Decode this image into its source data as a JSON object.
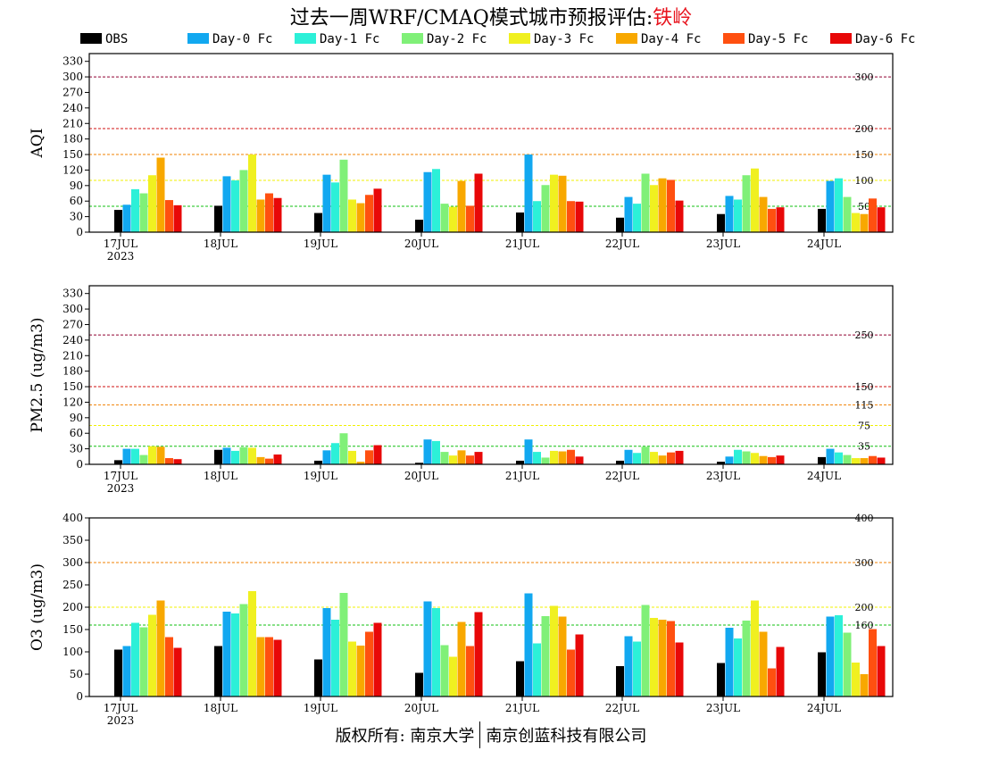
{
  "header": {
    "title": "过去一周WRF/CMAQ模式城市预报评估:",
    "city": "铁岭"
  },
  "footer": {
    "left": "版权所有: 南京大学",
    "right": "南京创蓝科技有限公司"
  },
  "colors": {
    "series": [
      "#000000",
      "#12a8f0",
      "#2cf0d8",
      "#80f078",
      "#f0f020",
      "#f8a800",
      "#ff5010",
      "#e80808"
    ],
    "lines": {
      "green": "#10c010",
      "yellow": "#f0f000",
      "orange": "#f08000",
      "red": "#d01010",
      "maroon": "#900030"
    }
  },
  "chart_data": [
    {
      "type": "bar",
      "ylabel": "AQI",
      "ylim": [
        0,
        345
      ],
      "yticks": [
        0,
        30,
        60,
        90,
        120,
        150,
        180,
        210,
        240,
        270,
        300,
        330
      ],
      "categories": [
        "17JUL",
        "18JUL",
        "19JUL",
        "20JUL",
        "21JUL",
        "22JUL",
        "23JUL",
        "24JUL"
      ],
      "year_label": "2023",
      "thresholds": [
        {
          "value": 50,
          "label": "50",
          "color": "green"
        },
        {
          "value": 100,
          "label": "100",
          "color": "yellow"
        },
        {
          "value": 150,
          "label": "150",
          "color": "orange"
        },
        {
          "value": 200,
          "label": "200",
          "color": "red"
        },
        {
          "value": 300,
          "label": "300",
          "color": "maroon"
        }
      ],
      "series": [
        {
          "name": "OBS",
          "values": [
            43,
            51,
            37,
            24,
            38,
            28,
            35,
            45
          ]
        },
        {
          "name": "Day-0 Fc",
          "values": [
            53,
            108,
            111,
            116,
            150,
            68,
            70,
            99
          ]
        },
        {
          "name": "Day-1 Fc",
          "values": [
            83,
            100,
            96,
            122,
            60,
            55,
            63,
            104
          ]
        },
        {
          "name": "Day-2 Fc",
          "values": [
            75,
            120,
            140,
            55,
            91,
            113,
            110,
            68
          ]
        },
        {
          "name": "Day-3 Fc",
          "values": [
            110,
            150,
            63,
            49,
            111,
            91,
            123,
            37
          ]
        },
        {
          "name": "Day-4 Fc",
          "values": [
            144,
            63,
            56,
            99,
            109,
            104,
            68,
            35
          ]
        },
        {
          "name": "Day-5 Fc",
          "values": [
            62,
            75,
            72,
            51,
            60,
            101,
            45,
            65
          ]
        },
        {
          "name": "Day-6 Fc",
          "values": [
            52,
            66,
            84,
            113,
            59,
            61,
            48,
            48
          ]
        }
      ]
    },
    {
      "type": "bar",
      "ylabel": "PM2.5 (ug/m3)",
      "ylim": [
        0,
        345
      ],
      "yticks": [
        0,
        30,
        60,
        90,
        120,
        150,
        180,
        210,
        240,
        270,
        300,
        330
      ],
      "categories": [
        "17JUL",
        "18JUL",
        "19JUL",
        "20JUL",
        "21JUL",
        "22JUL",
        "23JUL",
        "24JUL"
      ],
      "year_label": "2023",
      "thresholds": [
        {
          "value": 35,
          "label": "35",
          "color": "green"
        },
        {
          "value": 75,
          "label": "75",
          "color": "yellow"
        },
        {
          "value": 115,
          "label": "115",
          "color": "orange"
        },
        {
          "value": 150,
          "label": "150",
          "color": "red"
        },
        {
          "value": 250,
          "label": "250",
          "color": "maroon"
        }
      ],
      "series": [
        {
          "name": "OBS",
          "values": [
            8,
            28,
            7,
            3,
            7,
            7,
            5,
            14
          ]
        },
        {
          "name": "Day-0 Fc",
          "values": [
            30,
            32,
            27,
            48,
            48,
            28,
            15,
            30
          ]
        },
        {
          "name": "Day-1 Fc",
          "values": [
            30,
            26,
            41,
            45,
            24,
            22,
            28,
            23
          ]
        },
        {
          "name": "Day-2 Fc",
          "values": [
            18,
            33,
            60,
            24,
            13,
            34,
            25,
            18
          ]
        },
        {
          "name": "Day-3 Fc",
          "values": [
            35,
            32,
            26,
            17,
            26,
            24,
            22,
            12
          ]
        },
        {
          "name": "Day-4 Fc",
          "values": [
            34,
            14,
            5,
            27,
            25,
            17,
            16,
            12
          ]
        },
        {
          "name": "Day-5 Fc",
          "values": [
            12,
            11,
            27,
            17,
            28,
            23,
            14,
            16
          ]
        },
        {
          "name": "Day-6 Fc",
          "values": [
            10,
            19,
            37,
            24,
            15,
            26,
            17,
            13
          ]
        }
      ]
    },
    {
      "type": "bar",
      "ylabel": "O3 (ug/m3)",
      "ylim": [
        0,
        400
      ],
      "yticks": [
        0,
        50,
        100,
        150,
        200,
        250,
        300,
        350,
        400
      ],
      "categories": [
        "17JUL",
        "18JUL",
        "19JUL",
        "20JUL",
        "21JUL",
        "22JUL",
        "23JUL",
        "24JUL"
      ],
      "year_label": "2023",
      "thresholds": [
        {
          "value": 160,
          "label": "160",
          "color": "green"
        },
        {
          "value": 200,
          "label": "200",
          "color": "yellow"
        },
        {
          "value": 300,
          "label": "300",
          "color": "orange"
        },
        {
          "value": 400,
          "label": "400",
          "color": "red"
        }
      ],
      "series": [
        {
          "name": "OBS",
          "values": [
            105,
            113,
            83,
            53,
            79,
            68,
            75,
            99
          ]
        },
        {
          "name": "Day-0 Fc",
          "values": [
            113,
            190,
            198,
            213,
            231,
            135,
            154,
            179
          ]
        },
        {
          "name": "Day-1 Fc",
          "values": [
            165,
            186,
            172,
            198,
            119,
            123,
            130,
            182
          ]
        },
        {
          "name": "Day-2 Fc",
          "values": [
            155,
            207,
            232,
            115,
            180,
            205,
            170,
            143
          ]
        },
        {
          "name": "Day-3 Fc",
          "values": [
            183,
            236,
            123,
            89,
            203,
            176,
            215,
            76
          ]
        },
        {
          "name": "Day-4 Fc",
          "values": [
            215,
            133,
            114,
            167,
            179,
            172,
            145,
            50
          ]
        },
        {
          "name": "Day-5 Fc",
          "values": [
            133,
            133,
            145,
            113,
            105,
            169,
            63,
            151
          ]
        },
        {
          "name": "Day-6 Fc",
          "values": [
            109,
            127,
            165,
            189,
            139,
            121,
            111,
            113
          ]
        }
      ]
    }
  ]
}
